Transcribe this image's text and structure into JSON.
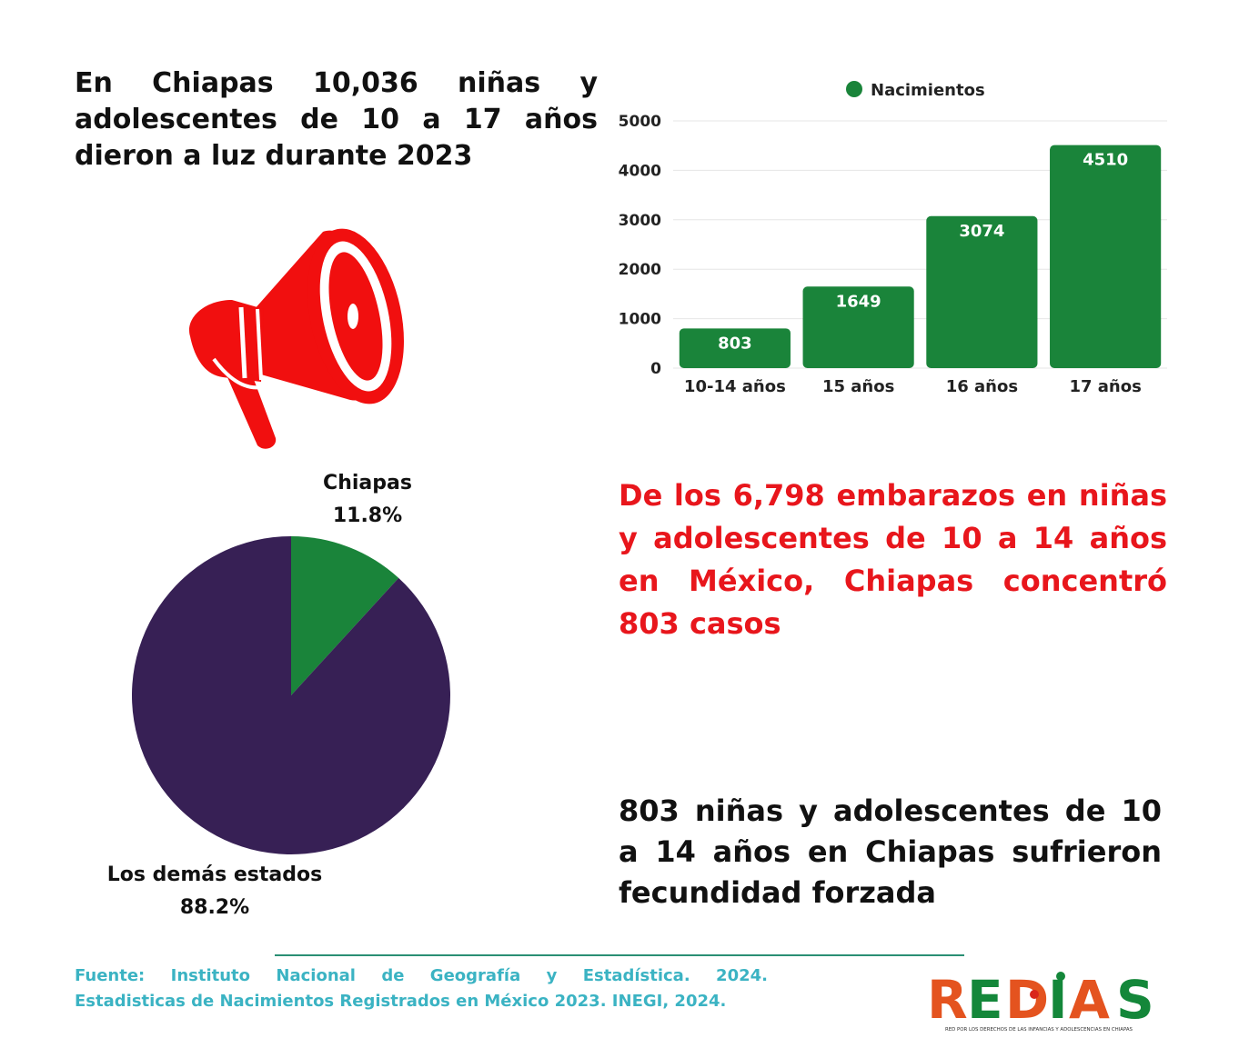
{
  "headline": "En Chiapas 10,036 niñas y adolescentes de 10 a 17 años dieron a luz durante 2023",
  "red_statement": "De los 6,798 embarazos en niñas y adolescentes de 10 a 14 años en México, Chiapas concentró 803 casos",
  "black_statement": "803 niñas y adolescentes de 10 a 14 años en Chiapas sufrieron fecundidad forzada",
  "source_line1": "Fuente: Instituto Nacional de Geografía y Estadística. 2024.",
  "source_line2": "Estadisticas de Nacimientos Registrados en México 2023. INEGI, 2024.",
  "logo": {
    "text": "REDIAS",
    "tagline": "RED POR LOS DERECHOS DE LAS INFANCIAS Y ADOLESCENCIAS EN CHIAPAS",
    "colors": {
      "orange": "#e4531f",
      "green": "#14873a",
      "red": "#d9261c"
    }
  },
  "icon": {
    "name": "megaphone-icon",
    "color": "#f10f0f"
  },
  "colors": {
    "bar_green": "#1a843a",
    "pie_purple": "#372055",
    "pie_green": "#1a843a",
    "red_text": "#e8161c",
    "source_blue": "#3bb3c3"
  },
  "chart_data": [
    {
      "type": "bar",
      "legend": {
        "entries": [
          "Nacimientos"
        ],
        "position": "top-center"
      },
      "categories": [
        "10-14 años",
        "15 años",
        "16 años",
        "17 años"
      ],
      "series": [
        {
          "name": "Nacimientos",
          "values": [
            803,
            1649,
            3074,
            4510
          ]
        }
      ],
      "data_labels": [
        "803",
        "1649",
        "3074",
        "4510"
      ],
      "ylim": [
        0,
        5000
      ],
      "yticks": [
        "0",
        "1000",
        "2000",
        "3000",
        "4000",
        "5000"
      ],
      "grid": true
    },
    {
      "type": "pie",
      "slices": [
        {
          "label": "Chiapas",
          "value": 11.8,
          "value_label": "11.8%",
          "color": "#1a843a"
        },
        {
          "label": "Los demás estados",
          "value": 88.2,
          "value_label": "88.2%",
          "color": "#372055"
        }
      ]
    }
  ]
}
